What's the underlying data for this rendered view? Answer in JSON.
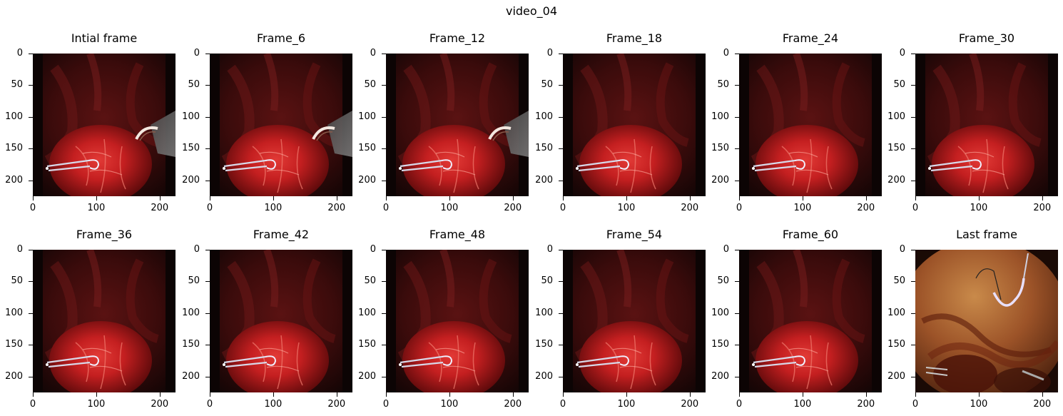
{
  "figure": {
    "suptitle": "video_04",
    "xticks": [
      "0",
      "100",
      "200"
    ],
    "yticks": [
      "0",
      "50",
      "100",
      "150",
      "200"
    ],
    "panels": [
      {
        "title": "Intial frame",
        "image": "surgical-scene-tool-in",
        "variant": "tool"
      },
      {
        "title": "Frame_6",
        "image": "surgical-scene-tool-in",
        "variant": "tool"
      },
      {
        "title": "Frame_12",
        "image": "surgical-scene-tool-in",
        "variant": "tool"
      },
      {
        "title": "Frame_18",
        "image": "surgical-scene",
        "variant": "plain"
      },
      {
        "title": "Frame_24",
        "image": "surgical-scene",
        "variant": "plain"
      },
      {
        "title": "Frame_30",
        "image": "surgical-scene",
        "variant": "plain"
      },
      {
        "title": "Frame_36",
        "image": "surgical-scene",
        "variant": "plain"
      },
      {
        "title": "Frame_42",
        "image": "surgical-scene",
        "variant": "plain"
      },
      {
        "title": "Frame_48",
        "image": "surgical-scene",
        "variant": "plain"
      },
      {
        "title": "Frame_54",
        "image": "surgical-scene",
        "variant": "plain"
      },
      {
        "title": "Frame_60",
        "image": "surgical-scene",
        "variant": "plain"
      },
      {
        "title": "Last frame",
        "image": "surgical-scene-suture",
        "variant": "last"
      }
    ]
  }
}
